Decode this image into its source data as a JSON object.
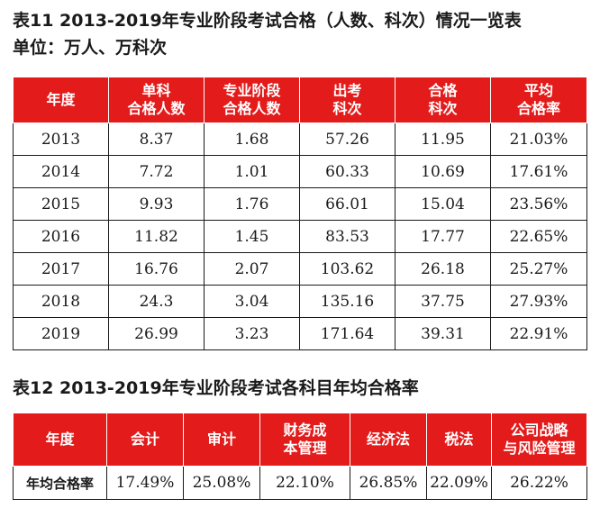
{
  "table11": {
    "title": "表11  2013-2019年专业阶段考试合格（人数、科次）情况一览表",
    "unit": "单位：万人、万科次",
    "headers": [
      [
        "年度"
      ],
      [
        "单科",
        "合格人数"
      ],
      [
        "专业阶段",
        "合格人数"
      ],
      [
        "出考",
        "科次"
      ],
      [
        "合格",
        "科次"
      ],
      [
        "平均",
        "合格率"
      ]
    ],
    "rows": [
      [
        "2013",
        "8.37",
        "1.68",
        "57.26",
        "11.95",
        "21.03%"
      ],
      [
        "2014",
        "7.72",
        "1.01",
        "60.33",
        "10.69",
        "17.61%"
      ],
      [
        "2015",
        "9.93",
        "1.76",
        "66.01",
        "15.04",
        "23.56%"
      ],
      [
        "2016",
        "11.82",
        "1.45",
        "83.53",
        "17.77",
        "22.65%"
      ],
      [
        "2017",
        "16.76",
        "2.07",
        "103.62",
        "26.18",
        "25.27%"
      ],
      [
        "2018",
        "24.3",
        "3.04",
        "135.16",
        "37.75",
        "27.93%"
      ],
      [
        "2019",
        "26.99",
        "3.23",
        "171.64",
        "39.31",
        "22.91%"
      ]
    ]
  },
  "table12": {
    "title": "表12  2013-2019年专业阶段考试各科目年均合格率",
    "headers": [
      [
        "年度"
      ],
      [
        "会计"
      ],
      [
        "审计"
      ],
      [
        "财务成",
        "本管理"
      ],
      [
        "经济法"
      ],
      [
        "税法"
      ],
      [
        "公司战略",
        "与风险管理"
      ]
    ],
    "rows": [
      [
        "年均合格率",
        "17.49%",
        "25.08%",
        "22.10%",
        "26.85%",
        "22.09%",
        "26.22%"
      ]
    ]
  },
  "colors": {
    "header_bg": "#e31b1b",
    "header_text": "#ffffff"
  }
}
